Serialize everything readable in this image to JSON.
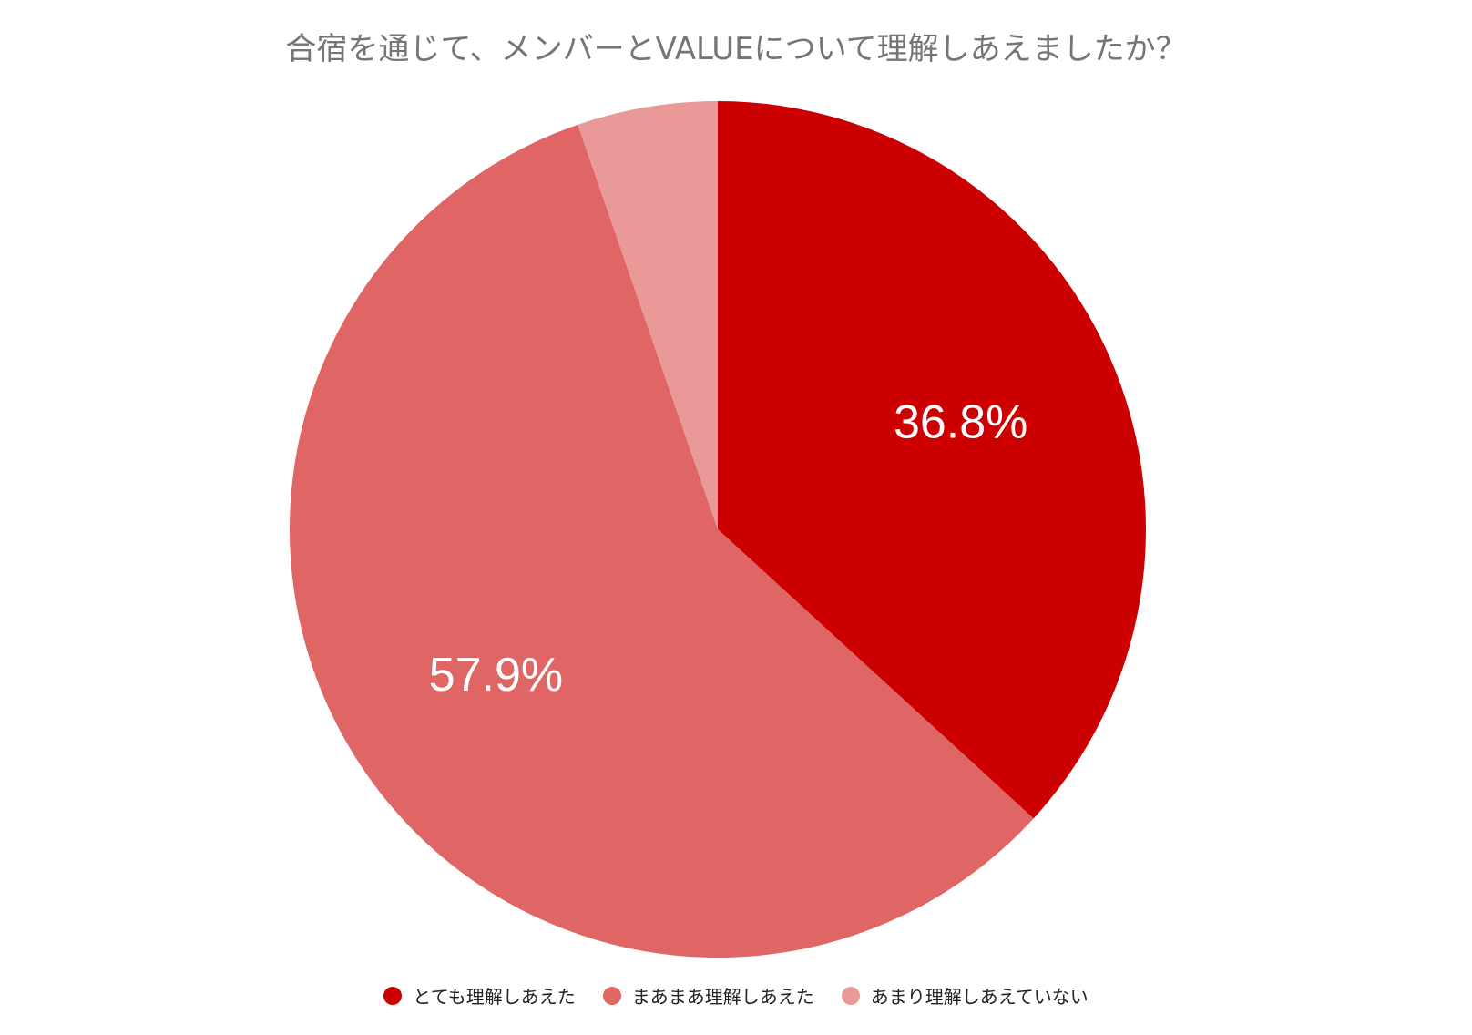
{
  "chart_data": {
    "type": "pie",
    "title": "合宿を通じて、メンバーとVALUEについて理解しあえましたか？",
    "categories": [
      "とても理解しあえた",
      "まあまあ理解しあえた",
      "あまり理解しあえていない"
    ],
    "values": [
      36.8,
      57.9,
      5.3
    ],
    "labels": [
      "36.8%",
      "57.9%",
      ""
    ],
    "colors": [
      "#cc0000",
      "#e06666",
      "#ea9999"
    ],
    "legend_position": "bottom"
  }
}
